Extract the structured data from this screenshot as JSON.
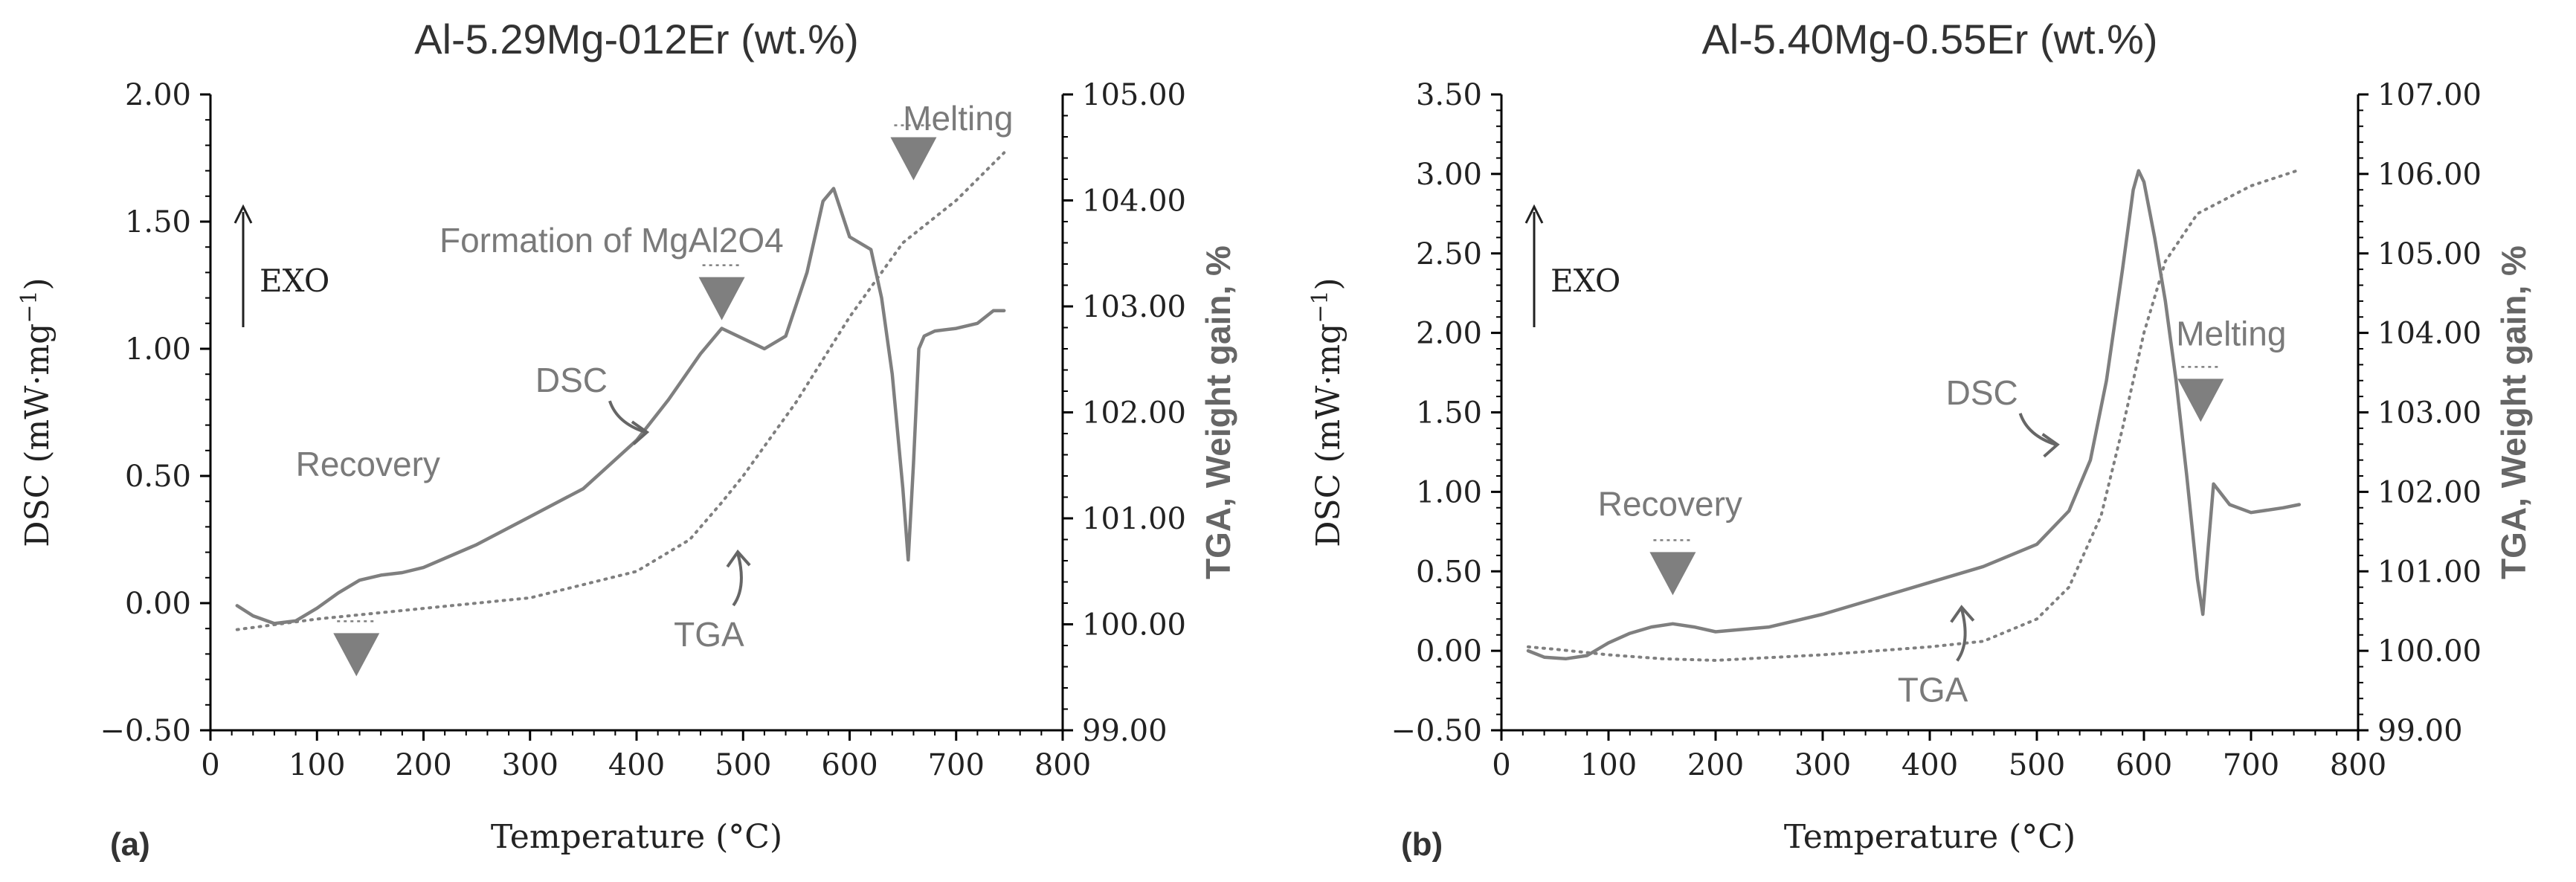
{
  "chart_data": [
    {
      "panel_label": "(a)",
      "type": "line",
      "title": "Al-5.29Mg-012Er (wt.%)",
      "xlabel": "Temperature (°C)",
      "ylabel": "DSC (mW·mg",
      "ylabel_exponent": "−1",
      "ylabel_suffix": ")",
      "y2label": "TGA, Weight gain, %",
      "xlim": [
        0,
        800
      ],
      "ylim": [
        -0.5,
        2.0
      ],
      "y2lim": [
        99.0,
        105.0
      ],
      "x_ticks": [
        "0",
        "100",
        "200",
        "300",
        "400",
        "500",
        "600",
        "700",
        "800"
      ],
      "y_ticks": [
        "−0.50",
        "0.00",
        "0.50",
        "1.00",
        "1.50",
        "2.00"
      ],
      "y2_ticks": [
        "99.00",
        "100.00",
        "101.00",
        "102.00",
        "103.00",
        "104.00",
        "105.00"
      ],
      "grid": false,
      "color": "#7f7f7f",
      "exo_label": "EXO",
      "series": [
        {
          "name": "DSC",
          "axis": "left",
          "style": "solid",
          "x": [
            25,
            40,
            60,
            80,
            100,
            120,
            140,
            160,
            180,
            200,
            250,
            300,
            350,
            400,
            430,
            460,
            480,
            500,
            520,
            540,
            560,
            575,
            585,
            600,
            620,
            630,
            640,
            650,
            655,
            660,
            665,
            670,
            680,
            700,
            720,
            735,
            745
          ],
          "y": [
            -0.01,
            -0.05,
            -0.08,
            -0.07,
            -0.02,
            0.04,
            0.09,
            0.11,
            0.12,
            0.14,
            0.23,
            0.34,
            0.45,
            0.64,
            0.8,
            0.98,
            1.08,
            1.04,
            1.0,
            1.05,
            1.3,
            1.58,
            1.63,
            1.44,
            1.39,
            1.2,
            0.9,
            0.45,
            0.17,
            0.55,
            1.0,
            1.05,
            1.07,
            1.08,
            1.1,
            1.15,
            1.15
          ]
        },
        {
          "name": "TGA",
          "axis": "right",
          "style": "dotted",
          "x": [
            25,
            100,
            200,
            300,
            400,
            450,
            480,
            500,
            550,
            600,
            650,
            700,
            745
          ],
          "y": [
            99.95,
            100.05,
            100.15,
            100.25,
            100.5,
            100.8,
            101.15,
            101.4,
            102.1,
            102.9,
            103.6,
            104.0,
            104.45
          ]
        }
      ],
      "annotations": [
        {
          "text": "Recovery",
          "x": 80,
          "y": 0.5
        },
        {
          "text": "Formation of MgAl2O4",
          "x": 215,
          "y": 1.38
        },
        {
          "text": "Melting",
          "x": 650,
          "y": 1.86
        },
        {
          "text": "DSC",
          "x": 305,
          "y": 0.83
        },
        {
          "text": "TGA",
          "x": 435,
          "y": -0.17
        }
      ],
      "markers": [
        {
          "type": "triangle-down",
          "x": 137,
          "y": -0.2
        },
        {
          "type": "triangle-down",
          "x": 480,
          "y": 1.2
        },
        {
          "type": "triangle-down",
          "x": 660,
          "y": 1.75
        }
      ]
    },
    {
      "panel_label": "(b)",
      "type": "line",
      "title": "Al-5.40Mg-0.55Er (wt.%)",
      "xlabel": "Temperature (°C)",
      "ylabel": "DSC (mW·mg",
      "ylabel_exponent": "−1",
      "ylabel_suffix": ")",
      "y2label": "TGA, Weight gain, %",
      "xlim": [
        0,
        800
      ],
      "ylim": [
        -0.5,
        3.5
      ],
      "y2lim": [
        99.0,
        107.0
      ],
      "x_ticks": [
        "0",
        "100",
        "200",
        "300",
        "400",
        "500",
        "600",
        "700",
        "800"
      ],
      "y_ticks": [
        "−0.50",
        "0.00",
        "0.50",
        "1.00",
        "1.50",
        "2.00",
        "2.50",
        "3.00",
        "3.50"
      ],
      "y2_ticks": [
        "99.00",
        "100.00",
        "101.00",
        "102.00",
        "103.00",
        "104.00",
        "105.00",
        "106.00",
        "107.00"
      ],
      "grid": false,
      "color": "#7f7f7f",
      "exo_label": "EXO",
      "series": [
        {
          "name": "DSC",
          "axis": "left",
          "style": "solid",
          "x": [
            25,
            40,
            60,
            80,
            100,
            120,
            140,
            160,
            180,
            200,
            250,
            300,
            350,
            400,
            450,
            500,
            530,
            550,
            565,
            580,
            590,
            595,
            600,
            610,
            620,
            630,
            640,
            650,
            655,
            660,
            665,
            680,
            700,
            730,
            745
          ],
          "y": [
            0.0,
            -0.04,
            -0.05,
            -0.03,
            0.05,
            0.11,
            0.15,
            0.17,
            0.15,
            0.12,
            0.15,
            0.23,
            0.33,
            0.43,
            0.53,
            0.67,
            0.88,
            1.2,
            1.7,
            2.4,
            2.9,
            3.02,
            2.95,
            2.6,
            2.2,
            1.7,
            1.1,
            0.45,
            0.23,
            0.65,
            1.05,
            0.92,
            0.87,
            0.9,
            0.92
          ]
        },
        {
          "name": "TGA",
          "axis": "right",
          "style": "dotted",
          "x": [
            25,
            50,
            100,
            150,
            200,
            300,
            400,
            450,
            500,
            530,
            560,
            580,
            600,
            620,
            650,
            700,
            745
          ],
          "y": [
            100.05,
            100.02,
            99.95,
            99.9,
            99.88,
            99.95,
            100.05,
            100.12,
            100.4,
            100.8,
            101.7,
            102.8,
            104.0,
            104.9,
            105.5,
            105.85,
            106.05
          ]
        }
      ],
      "annotations": [
        {
          "text": "Recovery",
          "x": 90,
          "y": 0.85
        },
        {
          "text": "Melting",
          "x": 630,
          "y": 1.92
        },
        {
          "text": "DSC",
          "x": 415,
          "y": 1.55
        },
        {
          "text": "TGA",
          "x": 370,
          "y": -0.32
        }
      ],
      "markers": [
        {
          "type": "triangle-down",
          "x": 160,
          "y": 0.49
        },
        {
          "type": "triangle-down",
          "x": 653,
          "y": 1.58
        }
      ]
    }
  ]
}
